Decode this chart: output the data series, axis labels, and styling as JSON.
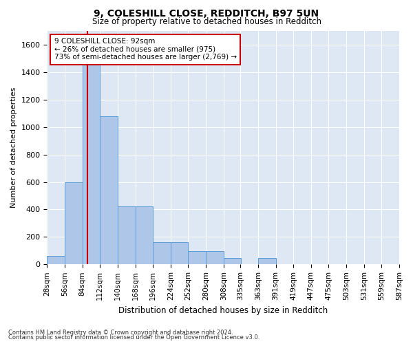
{
  "title_line1": "9, COLESHILL CLOSE, REDDITCH, B97 5UN",
  "title_line2": "Size of property relative to detached houses in Redditch",
  "xlabel": "Distribution of detached houses by size in Redditch",
  "ylabel": "Number of detached properties",
  "footnote1": "Contains HM Land Registry data © Crown copyright and database right 2024.",
  "footnote2": "Contains public sector information licensed under the Open Government Licence v3.0.",
  "annotation_line1": "9 COLESHILL CLOSE: 92sqm",
  "annotation_line2": "← 26% of detached houses are smaller (975)",
  "annotation_line3": "73% of semi-detached houses are larger (2,769) →",
  "property_size": 92,
  "bin_edges": [
    28,
    56,
    84,
    112,
    140,
    168,
    196,
    224,
    252,
    280,
    308,
    335,
    363,
    391,
    419,
    447,
    475,
    503,
    531,
    559,
    587
  ],
  "bar_heights": [
    60,
    600,
    1540,
    1080,
    420,
    420,
    160,
    160,
    95,
    95,
    45,
    0,
    45,
    0,
    0,
    0,
    0,
    0,
    0,
    0
  ],
  "bar_color": "#aec6e8",
  "bar_edge_color": "#5b9bd5",
  "highlight_color": "#cc0000",
  "annotation_box_color": "#cc0000",
  "background_color": "#dde8f4",
  "ylim": [
    0,
    1700
  ],
  "yticks": [
    0,
    200,
    400,
    600,
    800,
    1000,
    1200,
    1400,
    1600
  ]
}
